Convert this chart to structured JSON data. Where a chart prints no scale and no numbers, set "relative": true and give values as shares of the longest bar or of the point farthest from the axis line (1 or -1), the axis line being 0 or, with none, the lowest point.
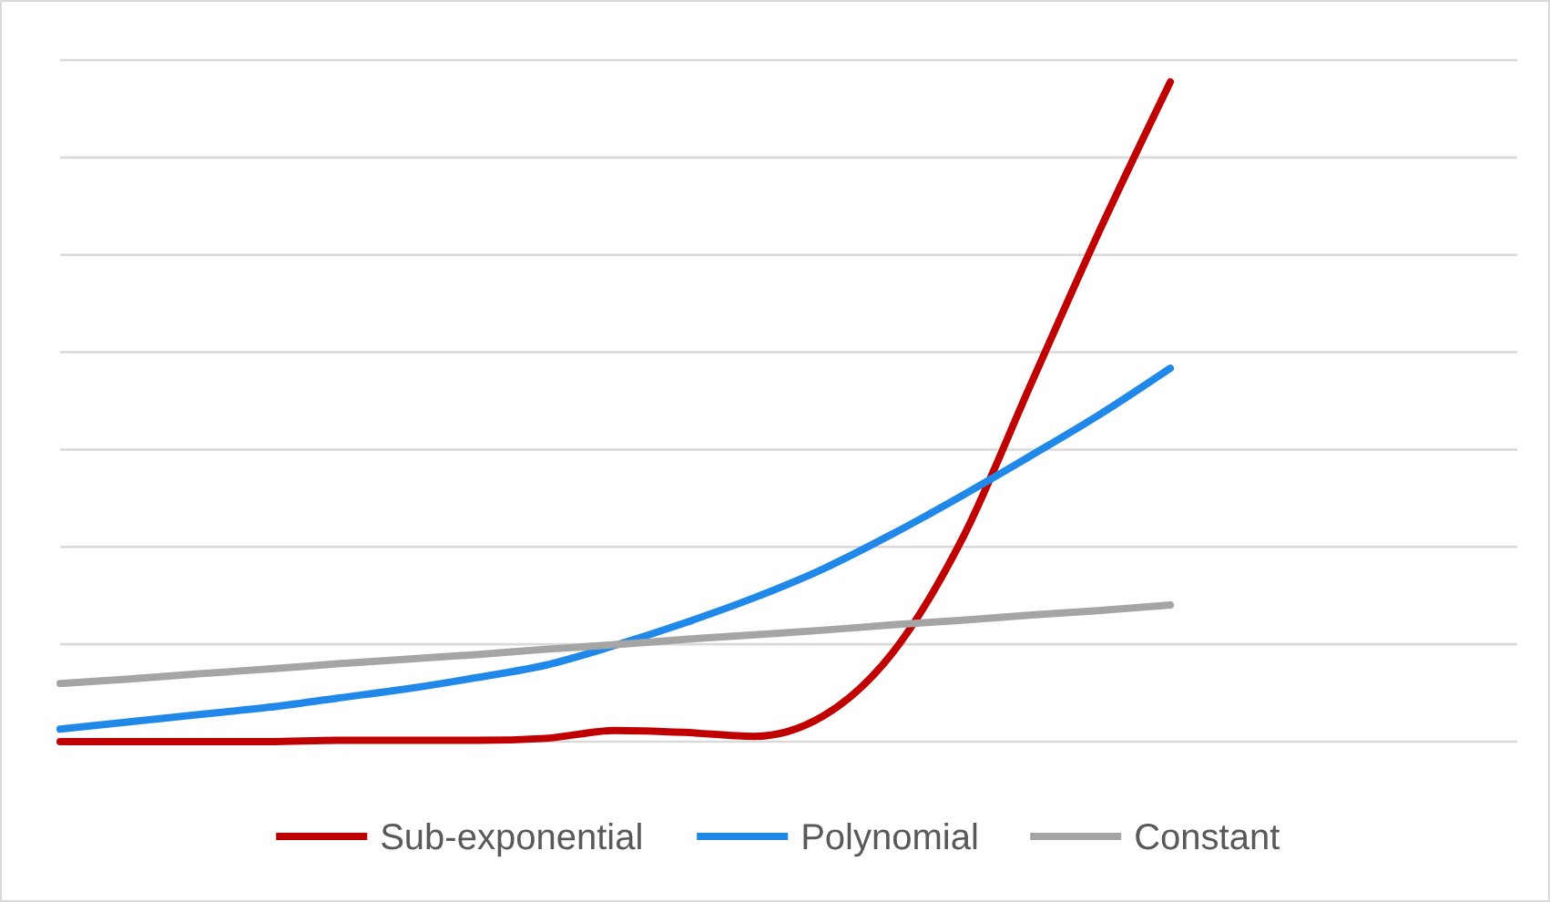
{
  "chart_data": {
    "type": "line",
    "relative": true,
    "grid": "y",
    "legend": "bottom",
    "line_style": "solid",
    "categories": [
      null,
      null,
      null,
      null,
      null,
      null,
      null,
      null,
      null,
      null,
      null,
      null,
      null,
      null,
      null,
      null,
      null,
      null,
      null,
      null,
      null
    ],
    "series": [
      {
        "name": "Sub-exponential",
        "color": "#c00000",
        "values": [
          0,
          0,
          0,
          0,
          0.002,
          0.002,
          0.002,
          0.005,
          0.017,
          0.014,
          0.008,
          0.039,
          0.135,
          0.307,
          0.544,
          0.779,
          1,
          null,
          null,
          null,
          null
        ]
      },
      {
        "name": "Polynomial",
        "color": "#1f88e8",
        "values": [
          0.019,
          0.03,
          0.041,
          0.052,
          0.066,
          0.08,
          0.097,
          0.116,
          0.146,
          0.18,
          0.218,
          0.262,
          0.315,
          0.373,
          0.434,
          0.497,
          0.566,
          null,
          null,
          null,
          null
        ]
      },
      {
        "name": "Constant",
        "color": "#a5a5a5",
        "values": [
          0.088,
          0.095,
          0.103,
          0.11,
          0.118,
          0.125,
          0.132,
          0.14,
          0.147,
          0.155,
          0.162,
          0.169,
          0.177,
          0.184,
          0.192,
          0.199,
          0.207,
          null,
          null,
          null,
          null
        ]
      }
    ]
  }
}
